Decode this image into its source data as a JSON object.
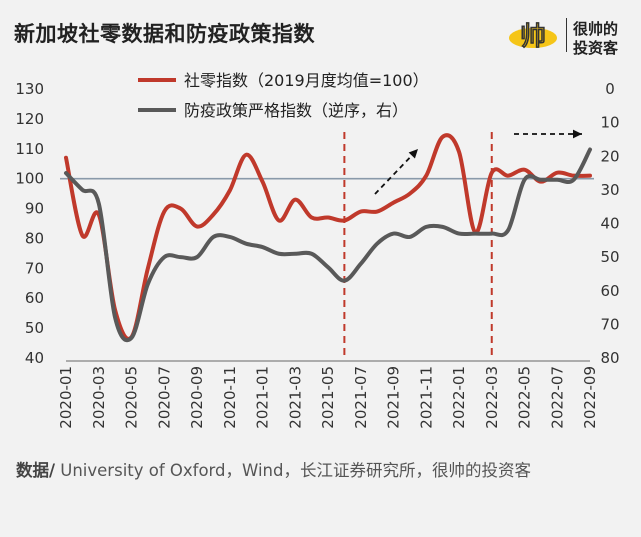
{
  "header": {
    "title": "新加坡社零数据和防疫政策指数",
    "brand_name_line1": "很帅的",
    "brand_name_line2": "投资客",
    "brand_logo_text": "帅"
  },
  "footer": {
    "source_label": "数据/",
    "source_text": " University of Oxford，Wind，长江证券研究所，很帅的投资客"
  },
  "chart_data": {
    "type": "line",
    "x": [
      "2020-01",
      "2020-02",
      "2020-03",
      "2020-04",
      "2020-05",
      "2020-06",
      "2020-07",
      "2020-08",
      "2020-09",
      "2020-10",
      "2020-11",
      "2020-12",
      "2021-01",
      "2021-02",
      "2021-03",
      "2021-04",
      "2021-05",
      "2021-06",
      "2021-07",
      "2021-08",
      "2021-09",
      "2021-10",
      "2021-11",
      "2021-12",
      "2022-01",
      "2022-02",
      "2022-03",
      "2022-04",
      "2022-05",
      "2022-06",
      "2022-07",
      "2022-08",
      "2022-09"
    ],
    "x_tick_labels": [
      "2020-01",
      "2020-03",
      "2020-05",
      "2020-07",
      "2020-09",
      "2020-11",
      "2021-01",
      "2021-03",
      "2021-05",
      "2021-07",
      "2021-09",
      "2021-11",
      "2022-01",
      "2022-03",
      "2022-05",
      "2022-07",
      "2022-09"
    ],
    "series": [
      {
        "name": "社零指数（2019月度均值=100）",
        "axis": "left",
        "color": "#c0392b",
        "values": [
          107,
          81,
          88,
          56,
          47,
          70,
          89,
          90,
          84,
          88,
          96,
          108,
          99,
          86,
          93,
          87,
          87,
          86,
          89,
          89,
          92,
          95,
          101,
          114,
          109,
          82,
          102,
          101,
          103,
          99,
          102,
          101,
          101
        ]
      },
      {
        "name": "防疫政策严格指数（逆序，右）",
        "axis": "right",
        "color": "#595959",
        "values": [
          25,
          30,
          34,
          68,
          74,
          58,
          50,
          50,
          50,
          44,
          44,
          46,
          47,
          49,
          49,
          49,
          53,
          57,
          52,
          46,
          43,
          44,
          41,
          41,
          43,
          43,
          43,
          42,
          27,
          27,
          27,
          27,
          18
        ]
      }
    ],
    "ylim_left": [
      40,
      130
    ],
    "yticks_left": [
      40,
      50,
      60,
      70,
      80,
      90,
      100,
      110,
      120,
      130
    ],
    "ylim_right": [
      80,
      0
    ],
    "yticks_right": [
      0,
      10,
      20,
      30,
      40,
      50,
      60,
      70,
      80
    ],
    "reference_line_left": 100,
    "vertical_markers": [
      "2021-06",
      "2022-03"
    ],
    "legend_position": "top-center",
    "grid": false
  }
}
